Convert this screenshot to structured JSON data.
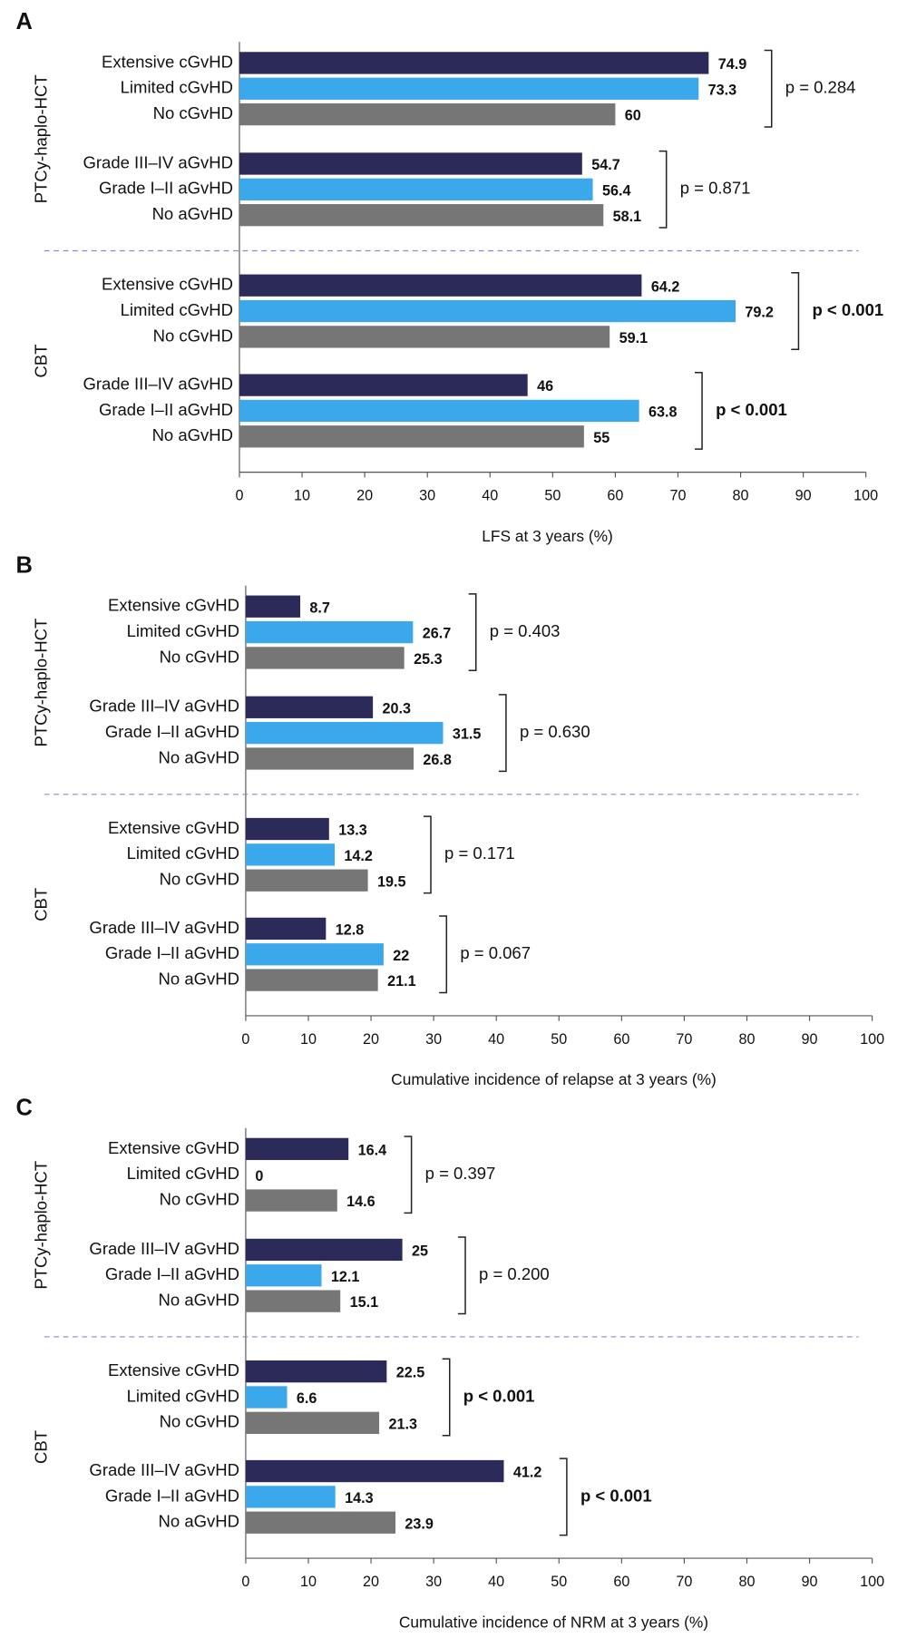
{
  "chart_data": [
    {
      "type": "bar",
      "panel": "A",
      "xlabel": "LFS at 3 years (%)",
      "xlim": [
        0,
        100
      ],
      "xticks": [
        0,
        10,
        20,
        30,
        40,
        50,
        60,
        70,
        80,
        90,
        100
      ],
      "colors": [
        "#2b2a58",
        "#3aa8ea",
        "#767676"
      ],
      "groups": [
        {
          "name": "PTCy-haplo-HCT",
          "subgroups": [
            {
              "categories": [
                "Extensive cGvHD",
                "Limited cGvHD",
                "No cGvHD"
              ],
              "values": [
                74.9,
                73.3,
                60
              ],
              "p": "p = 0.284",
              "p_bold": false
            },
            {
              "categories": [
                "Grade III–IV aGvHD",
                "Grade I–II aGvHD",
                "No aGvHD"
              ],
              "values": [
                54.7,
                56.4,
                58.1
              ],
              "p": "p = 0.871",
              "p_bold": false
            }
          ]
        },
        {
          "name": "CBT",
          "subgroups": [
            {
              "categories": [
                "Extensive cGvHD",
                "Limited cGvHD",
                "No cGvHD"
              ],
              "values": [
                64.2,
                79.2,
                59.1
              ],
              "p": "p < 0.001",
              "p_bold": true
            },
            {
              "categories": [
                "Grade III–IV aGvHD",
                "Grade I–II aGvHD",
                "No aGvHD"
              ],
              "values": [
                46,
                63.8,
                55
              ],
              "p": "p < 0.001",
              "p_bold": true
            }
          ]
        }
      ]
    },
    {
      "type": "bar",
      "panel": "B",
      "xlabel": "Cumulative incidence of relapse at 3 years (%)",
      "xlim": [
        0,
        100
      ],
      "xticks": [
        0,
        10,
        20,
        30,
        40,
        50,
        60,
        70,
        80,
        90,
        100
      ],
      "colors": [
        "#2b2a58",
        "#3aa8ea",
        "#767676"
      ],
      "groups": [
        {
          "name": "PTCy-haplo-HCT",
          "subgroups": [
            {
              "categories": [
                "Extensive cGvHD",
                "Limited cGvHD",
                "No cGvHD"
              ],
              "values": [
                8.7,
                26.7,
                25.3
              ],
              "p": "p = 0.403",
              "p_bold": false
            },
            {
              "categories": [
                "Grade III–IV aGvHD",
                "Grade I–II aGvHD",
                "No aGvHD"
              ],
              "values": [
                20.3,
                31.5,
                26.8
              ],
              "p": "p = 0.630",
              "p_bold": false
            }
          ]
        },
        {
          "name": "CBT",
          "subgroups": [
            {
              "categories": [
                "Extensive cGvHD",
                "Limited cGvHD",
                "No cGvHD"
              ],
              "values": [
                13.3,
                14.2,
                19.5
              ],
              "p": "p = 0.171",
              "p_bold": false
            },
            {
              "categories": [
                "Grade III–IV aGvHD",
                "Grade I–II aGvHD",
                "No aGvHD"
              ],
              "values": [
                12.8,
                22,
                21.1
              ],
              "p": "p = 0.067",
              "p_bold": false
            }
          ]
        }
      ]
    },
    {
      "type": "bar",
      "panel": "C",
      "xlabel": "Cumulative incidence of NRM at 3 years (%)",
      "xlim": [
        0,
        100
      ],
      "xticks": [
        0,
        10,
        20,
        30,
        40,
        50,
        60,
        70,
        80,
        90,
        100
      ],
      "colors": [
        "#2b2a58",
        "#3aa8ea",
        "#767676"
      ],
      "groups": [
        {
          "name": "PTCy-haplo-HCT",
          "subgroups": [
            {
              "categories": [
                "Extensive cGvHD",
                "Limited cGvHD",
                "No cGvHD"
              ],
              "values": [
                16.4,
                0,
                14.6
              ],
              "p": "p = 0.397",
              "p_bold": false
            },
            {
              "categories": [
                "Grade III–IV aGvHD",
                "Grade I–II aGvHD",
                "No aGvHD"
              ],
              "values": [
                25,
                12.1,
                15.1
              ],
              "p": "p = 0.200",
              "p_bold": false
            }
          ]
        },
        {
          "name": "CBT",
          "subgroups": [
            {
              "categories": [
                "Extensive cGvHD",
                "Limited cGvHD",
                "No cGvHD"
              ],
              "values": [
                22.5,
                6.6,
                21.3
              ],
              "p": "p < 0.001",
              "p_bold": true
            },
            {
              "categories": [
                "Grade III–IV aGvHD",
                "Grade I–II aGvHD",
                "No aGvHD"
              ],
              "values": [
                41.2,
                14.3,
                23.9
              ],
              "p": "p < 0.001",
              "p_bold": true
            }
          ]
        }
      ]
    }
  ]
}
